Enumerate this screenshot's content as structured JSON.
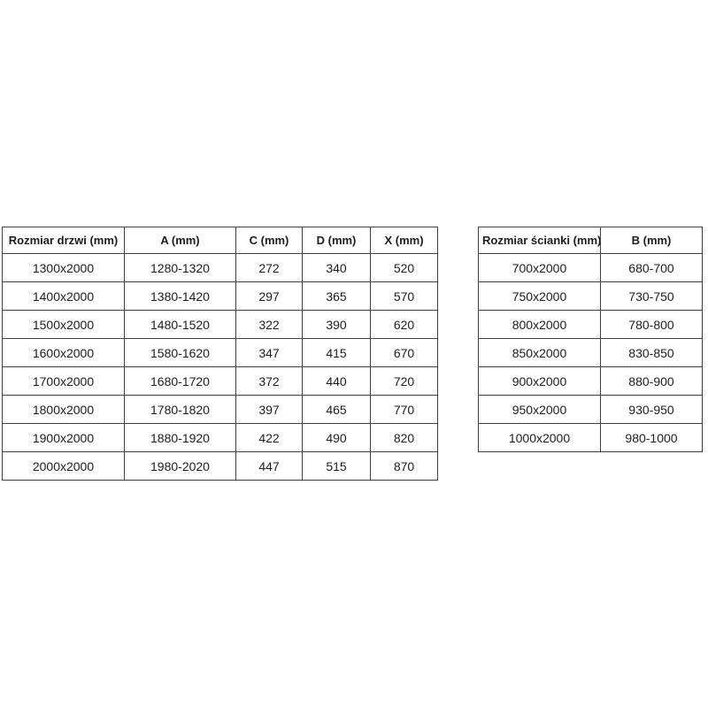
{
  "colors": {
    "border": "#404040",
    "text": "#1c1c1c",
    "background": "#ffffff"
  },
  "door_table": {
    "headers": [
      "Rozmiar drzwi (mm)",
      "A (mm)",
      "C (mm)",
      "D (mm)",
      "X (mm)"
    ],
    "rows": [
      [
        "1300x2000",
        "1280-1320",
        "272",
        "340",
        "520"
      ],
      [
        "1400x2000",
        "1380-1420",
        "297",
        "365",
        "570"
      ],
      [
        "1500x2000",
        "1480-1520",
        "322",
        "390",
        "620"
      ],
      [
        "1600x2000",
        "1580-1620",
        "347",
        "415",
        "670"
      ],
      [
        "1700x2000",
        "1680-1720",
        "372",
        "440",
        "720"
      ],
      [
        "1800x2000",
        "1780-1820",
        "397",
        "465",
        "770"
      ],
      [
        "1900x2000",
        "1880-1920",
        "422",
        "490",
        "820"
      ],
      [
        "2000x2000",
        "1980-2020",
        "447",
        "515",
        "870"
      ]
    ]
  },
  "wall_table": {
    "headers": [
      "Rozmiar ścianki (mm)",
      "B (mm)"
    ],
    "rows": [
      [
        "700x2000",
        "680-700"
      ],
      [
        "750x2000",
        "730-750"
      ],
      [
        "800x2000",
        "780-800"
      ],
      [
        "850x2000",
        "830-850"
      ],
      [
        "900x2000",
        "880-900"
      ],
      [
        "950x2000",
        "930-950"
      ],
      [
        "1000x2000",
        "980-1000"
      ]
    ]
  }
}
